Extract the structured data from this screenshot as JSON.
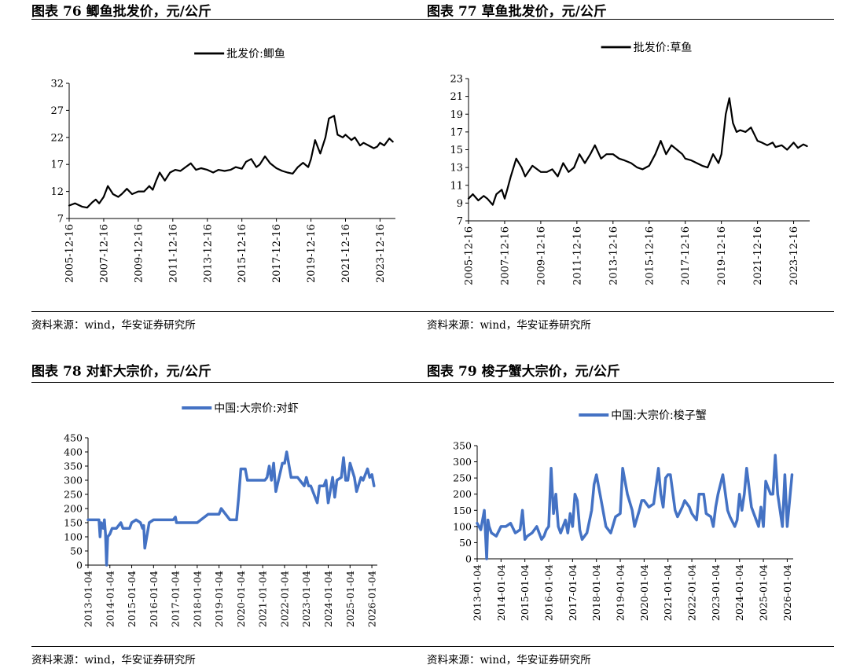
{
  "charts": [
    {
      "title_prefix": "图表",
      "title_number": "76",
      "title_text": "鲫鱼批发价，元/公斤",
      "source": "资料来源：wind，华安证券研究所"
    },
    {
      "title_prefix": "图表",
      "title_number": "77",
      "title_text": "草鱼批发价，元/公斤",
      "source": "资料来源：wind，华安证券研究所"
    },
    {
      "title_prefix": "图表",
      "title_number": "78",
      "title_text": "对虾大宗价，元/公斤",
      "source": "资料来源：wind，华安证券研究所"
    },
    {
      "title_prefix": "图表",
      "title_number": "79",
      "title_text": "梭子蟹大宗价，元/公斤",
      "source": "资料来源：wind，华安证券研究所"
    }
  ],
  "chart_data": [
    {
      "type": "line",
      "series": [
        {
          "name": "批发价:鲫鱼",
          "color": "#000000",
          "x": [
            2005.96,
            2006.3,
            2006.7,
            2007.0,
            2007.3,
            2007.5,
            2007.7,
            2007.96,
            2008.2,
            2008.5,
            2008.8,
            2009.0,
            2009.3,
            2009.6,
            2009.96,
            2010.3,
            2010.6,
            2010.8,
            2011.0,
            2011.2,
            2011.5,
            2011.8,
            2012.1,
            2012.4,
            2012.7,
            2013.0,
            2013.3,
            2013.6,
            2013.96,
            2014.3,
            2014.6,
            2014.96,
            2015.3,
            2015.6,
            2015.96,
            2016.2,
            2016.5,
            2016.8,
            2017.0,
            2017.3,
            2017.6,
            2017.96,
            2018.3,
            2018.6,
            2018.9,
            2019.2,
            2019.5,
            2019.8,
            2019.96,
            2020.2,
            2020.5,
            2020.8,
            2021.0,
            2021.3,
            2021.5,
            2021.8,
            2021.96,
            2022.3,
            2022.5,
            2022.8,
            2023.0,
            2023.3,
            2023.6,
            2023.8,
            2023.96,
            2024.2,
            2024.5,
            2024.7
          ],
          "values": [
            9.4,
            9.8,
            9.2,
            9.0,
            10.0,
            10.5,
            9.8,
            11.0,
            13.0,
            11.5,
            11.0,
            11.5,
            12.5,
            11.5,
            12.0,
            12.0,
            13.0,
            12.3,
            14.0,
            15.5,
            14.0,
            15.5,
            16.0,
            15.8,
            16.5,
            17.2,
            16.0,
            16.3,
            16.0,
            15.5,
            16.0,
            15.8,
            16.0,
            16.5,
            16.2,
            17.5,
            18.0,
            16.5,
            17.0,
            18.5,
            17.2,
            16.3,
            15.8,
            15.5,
            15.3,
            16.5,
            17.3,
            16.5,
            18.0,
            21.5,
            19.0,
            22.0,
            25.5,
            26.0,
            22.5,
            22.0,
            22.5,
            21.5,
            22.0,
            20.5,
            21.0,
            20.5,
            20.0,
            20.3,
            21.0,
            20.5,
            21.8,
            21.2
          ]
        }
      ],
      "ylim": [
        7,
        32
      ],
      "yticks": [
        7,
        12,
        17,
        22,
        27,
        32
      ],
      "xlim": [
        2005.96,
        2024.85
      ],
      "xticks": [
        2005.96,
        2007.96,
        2009.96,
        2011.96,
        2013.96,
        2015.96,
        2017.96,
        2019.96,
        2021.96,
        2023.96
      ],
      "xtick_labels": [
        "2005-12-16",
        "2007-12-16",
        "2009-12-16",
        "2011-12-16",
        "2013-12-16",
        "2015-12-16",
        "2017-12-16",
        "2019-12-16",
        "2021-12-16",
        "2023-12-16"
      ],
      "legend": "top-center"
    },
    {
      "type": "line",
      "series": [
        {
          "name": "批发价:草鱼",
          "color": "#000000",
          "x": [
            2005.96,
            2006.2,
            2006.5,
            2006.8,
            2007.0,
            2007.3,
            2007.5,
            2007.8,
            2007.96,
            2008.1,
            2008.3,
            2008.6,
            2008.9,
            2009.1,
            2009.5,
            2009.96,
            2010.3,
            2010.6,
            2010.9,
            2011.2,
            2011.5,
            2011.8,
            2012.1,
            2012.4,
            2012.7,
            2012.96,
            2013.3,
            2013.6,
            2013.96,
            2014.3,
            2014.6,
            2014.96,
            2015.3,
            2015.6,
            2015.96,
            2016.3,
            2016.6,
            2016.9,
            2017.2,
            2017.5,
            2017.8,
            2017.96,
            2018.3,
            2018.6,
            2018.9,
            2019.2,
            2019.5,
            2019.8,
            2019.96,
            2020.2,
            2020.4,
            2020.6,
            2020.8,
            2021.0,
            2021.3,
            2021.6,
            2021.96,
            2022.2,
            2022.5,
            2022.8,
            2022.96,
            2023.3,
            2023.6,
            2023.96,
            2024.2,
            2024.5,
            2024.7
          ],
          "values": [
            9.5,
            10.0,
            9.3,
            9.8,
            9.5,
            8.8,
            10.0,
            10.5,
            9.5,
            10.5,
            12.0,
            14.0,
            13.0,
            12.0,
            13.2,
            12.5,
            12.5,
            12.8,
            12.0,
            13.5,
            12.5,
            13.0,
            14.5,
            13.5,
            14.5,
            15.5,
            14.0,
            14.5,
            14.5,
            14.0,
            13.8,
            13.5,
            13.0,
            12.8,
            13.2,
            14.5,
            16.0,
            14.5,
            15.5,
            15.0,
            14.5,
            14.0,
            13.8,
            13.5,
            13.2,
            13.0,
            14.5,
            13.5,
            14.5,
            19.0,
            20.8,
            18.0,
            17.0,
            17.2,
            17.0,
            17.5,
            16.0,
            15.8,
            15.5,
            15.8,
            15.3,
            15.5,
            15.0,
            15.8,
            15.2,
            15.6,
            15.4
          ]
        }
      ],
      "ylim": [
        7,
        23
      ],
      "yticks": [
        7,
        9,
        11,
        13,
        15,
        17,
        19,
        21,
        23
      ],
      "xlim": [
        2005.96,
        2024.85
      ],
      "xticks": [
        2005.96,
        2007.96,
        2009.96,
        2011.96,
        2013.96,
        2015.96,
        2017.96,
        2019.96,
        2021.96,
        2023.96
      ],
      "xtick_labels": [
        "2005-12-16",
        "2007-12-16",
        "2009-12-16",
        "2011-12-16",
        "2013-12-16",
        "2015-12-16",
        "2017-12-16",
        "2019-12-16",
        "2021-12-16",
        "2023-12-16"
      ],
      "legend": "top-center"
    },
    {
      "type": "line",
      "series": [
        {
          "name": "中国:大宗价:对虾",
          "color": "#4472C4",
          "x": [
            2013.0,
            2013.5,
            2013.55,
            2013.6,
            2013.7,
            2013.75,
            2013.8,
            2013.85,
            2013.9,
            2014.0,
            2014.1,
            2014.3,
            2014.5,
            2014.6,
            2014.9,
            2015.0,
            2015.2,
            2015.4,
            2015.5,
            2015.55,
            2015.6,
            2015.8,
            2016.0,
            2016.2,
            2016.5,
            2016.8,
            2016.9,
            2017.0,
            2017.05,
            2017.5,
            2017.9,
            2018.0,
            2018.5,
            2018.9,
            2019.0,
            2019.1,
            2019.5,
            2019.8,
            2019.9,
            2020.0,
            2020.2,
            2020.3,
            2020.6,
            2020.9,
            2021.0,
            2021.1,
            2021.2,
            2021.3,
            2021.4,
            2021.5,
            2021.6,
            2021.9,
            2022.0,
            2022.1,
            2022.3,
            2022.5,
            2022.6,
            2022.9,
            2023.0,
            2023.1,
            2023.2,
            2023.5,
            2023.6,
            2023.7,
            2023.8,
            2023.9,
            2024.0,
            2024.2,
            2024.3,
            2024.4,
            2024.6,
            2024.7,
            2024.8,
            2024.9,
            2025.0,
            2025.2,
            2025.3,
            2025.5,
            2025.6,
            2025.8,
            2025.9,
            2026.0,
            2026.1
          ],
          "values": [
            160,
            160,
            100,
            150,
            130,
            160,
            110,
            0,
            100,
            110,
            130,
            130,
            150,
            130,
            130,
            150,
            160,
            150,
            130,
            140,
            60,
            150,
            160,
            160,
            160,
            160,
            160,
            170,
            150,
            150,
            150,
            150,
            180,
            180,
            180,
            200,
            160,
            160,
            240,
            340,
            340,
            300,
            300,
            300,
            300,
            300,
            310,
            350,
            300,
            360,
            260,
            360,
            360,
            400,
            310,
            310,
            310,
            280,
            310,
            280,
            280,
            220,
            280,
            280,
            280,
            300,
            220,
            310,
            240,
            300,
            310,
            380,
            300,
            300,
            360,
            310,
            260,
            310,
            300,
            340,
            310,
            320,
            280
          ]
        }
      ],
      "ylim": [
        0,
        450
      ],
      "yticks": [
        0,
        50,
        100,
        150,
        200,
        250,
        300,
        350,
        400,
        450
      ],
      "xlim": [
        2013.0,
        2026.25
      ],
      "xticks": [
        2013.0,
        2014.0,
        2015.0,
        2016.0,
        2017.0,
        2018.0,
        2019.0,
        2020.0,
        2021.0,
        2022.0,
        2023.0,
        2024.0,
        2025.0,
        2026.0
      ],
      "xtick_labels": [
        "2013-01-04",
        "2014-01-04",
        "2015-01-04",
        "2016-01-04",
        "2017-01-04",
        "2018-01-04",
        "2019-01-04",
        "2020-01-04",
        "2021-01-04",
        "2022-01-04",
        "2023-01-04",
        "2024-01-04",
        "2025-01-04",
        "2026-01-04"
      ],
      "legend": "top-center"
    },
    {
      "type": "line",
      "series": [
        {
          "name": "中国:大宗价:梭子蟹",
          "color": "#4472C4",
          "x": [
            2013.0,
            2013.15,
            2013.3,
            2013.4,
            2013.45,
            2013.5,
            2013.6,
            2013.8,
            2014.0,
            2014.2,
            2014.4,
            2014.6,
            2014.8,
            2014.9,
            2015.0,
            2015.1,
            2015.3,
            2015.5,
            2015.7,
            2015.8,
            2015.9,
            2016.0,
            2016.1,
            2016.2,
            2016.3,
            2016.35,
            2016.4,
            2016.5,
            2016.6,
            2016.7,
            2016.8,
            2016.9,
            2017.0,
            2017.1,
            2017.2,
            2017.3,
            2017.4,
            2017.6,
            2017.8,
            2017.9,
            2018.0,
            2018.2,
            2018.4,
            2018.6,
            2018.8,
            2019.0,
            2019.1,
            2019.3,
            2019.5,
            2019.6,
            2019.8,
            2019.9,
            2020.0,
            2020.2,
            2020.4,
            2020.6,
            2020.7,
            2020.8,
            2020.9,
            2021.0,
            2021.1,
            2021.3,
            2021.4,
            2021.6,
            2021.7,
            2021.9,
            2022.0,
            2022.2,
            2022.3,
            2022.5,
            2022.6,
            2022.8,
            2022.9,
            2023.0,
            2023.1,
            2023.3,
            2023.5,
            2023.6,
            2023.8,
            2023.9,
            2024.0,
            2024.1,
            2024.2,
            2024.3,
            2024.5,
            2024.6,
            2024.8,
            2024.9,
            2025.0,
            2025.1,
            2025.3,
            2025.4,
            2025.5,
            2025.6,
            2025.8,
            2025.9,
            2026.0,
            2026.2
          ],
          "values": [
            110,
            90,
            150,
            0,
            120,
            100,
            80,
            70,
            100,
            100,
            110,
            80,
            90,
            150,
            60,
            70,
            80,
            100,
            60,
            70,
            90,
            100,
            280,
            140,
            200,
            150,
            100,
            80,
            100,
            120,
            80,
            140,
            100,
            200,
            180,
            90,
            60,
            80,
            150,
            230,
            260,
            180,
            100,
            80,
            130,
            140,
            280,
            200,
            150,
            100,
            150,
            180,
            180,
            160,
            170,
            280,
            200,
            160,
            250,
            260,
            260,
            150,
            130,
            160,
            180,
            160,
            140,
            120,
            200,
            200,
            140,
            130,
            100,
            160,
            200,
            260,
            150,
            130,
            100,
            120,
            200,
            150,
            200,
            280,
            160,
            140,
            100,
            160,
            100,
            240,
            200,
            200,
            320,
            200,
            100,
            260,
            100,
            260
          ]
        }
      ],
      "ylim": [
        0,
        350
      ],
      "yticks": [
        0,
        50,
        100,
        150,
        200,
        250,
        300,
        350
      ],
      "xlim": [
        2013.0,
        2026.25
      ],
      "xticks": [
        2013.0,
        2014.0,
        2015.0,
        2016.0,
        2017.0,
        2018.0,
        2019.0,
        2020.0,
        2021.0,
        2022.0,
        2023.0,
        2024.0,
        2025.0,
        2026.0
      ],
      "xtick_labels": [
        "2013-01-04",
        "2014-01-04",
        "2015-01-04",
        "2016-01-04",
        "2017-01-04",
        "2018-01-04",
        "2019-01-04",
        "2020-01-04",
        "2021-01-04",
        "2022-01-04",
        "2023-01-04",
        "2024-01-04",
        "2025-01-04",
        "2026-01-04"
      ],
      "legend": "top-center"
    }
  ]
}
